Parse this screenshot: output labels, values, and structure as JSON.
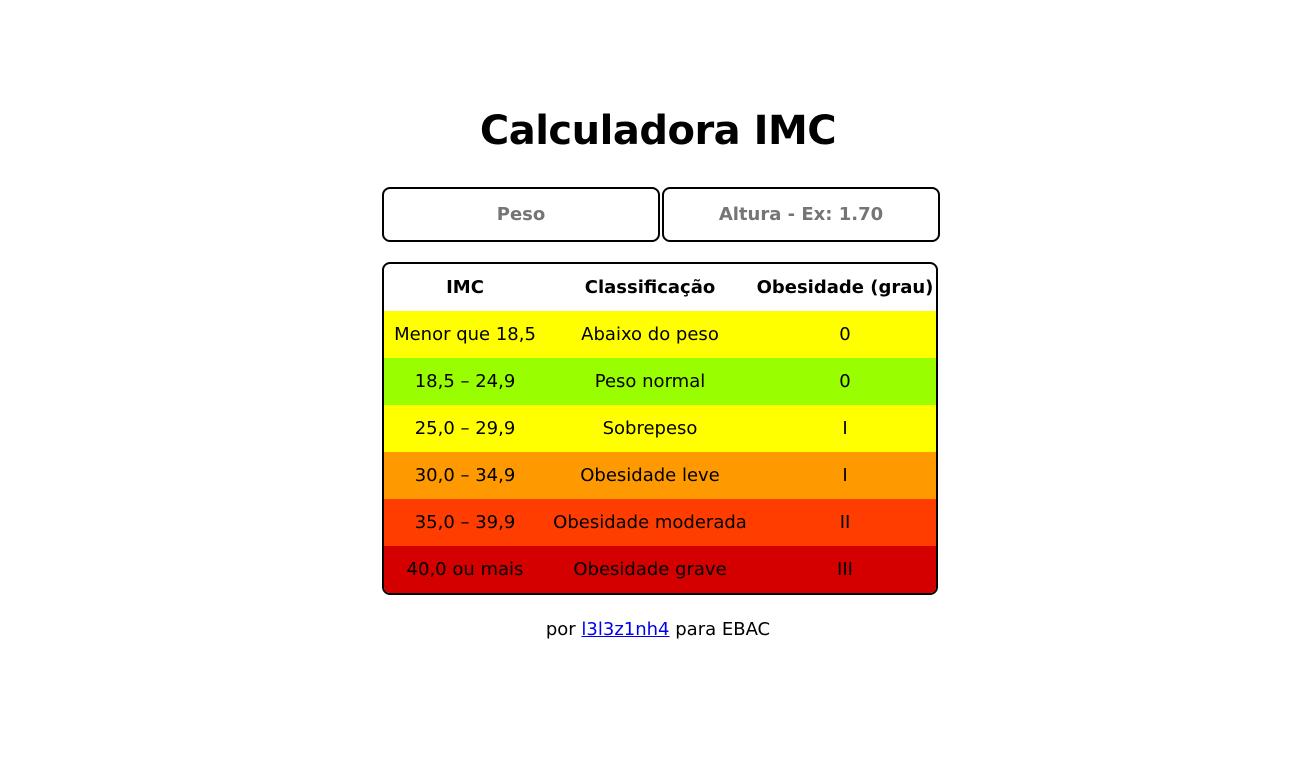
{
  "title": "Calculadora IMC",
  "inputs": {
    "peso_placeholder": "Peso",
    "altura_placeholder": "Altura - Ex: 1.70"
  },
  "table": {
    "headers": [
      "IMC",
      "Classificação",
      "Obesidade (grau)"
    ],
    "rows": [
      {
        "imc": "Menor que 18,5",
        "classificacao": "Abaixo do peso",
        "grau": "0",
        "color": "#ffff00"
      },
      {
        "imc": "18,5 – 24,9",
        "classificacao": "Peso normal",
        "grau": "0",
        "color": "#99ff00"
      },
      {
        "imc": "25,0 – 29,9",
        "classificacao": "Sobrepeso",
        "grau": "I",
        "color": "#ffff00"
      },
      {
        "imc": "30,0 – 34,9",
        "classificacao": "Obesidade leve",
        "grau": "I",
        "color": "#ff9900"
      },
      {
        "imc": "35,0 – 39,9",
        "classificacao": "Obesidade moderada",
        "grau": "II",
        "color": "#ff3d00"
      },
      {
        "imc": "40,0 ou mais",
        "classificacao": "Obesidade grave",
        "grau": "III",
        "color": "#d40000"
      }
    ]
  },
  "footer": {
    "prefix": "por",
    "link_text": "l3l3z1nh4",
    "suffix": "para EBAC"
  }
}
